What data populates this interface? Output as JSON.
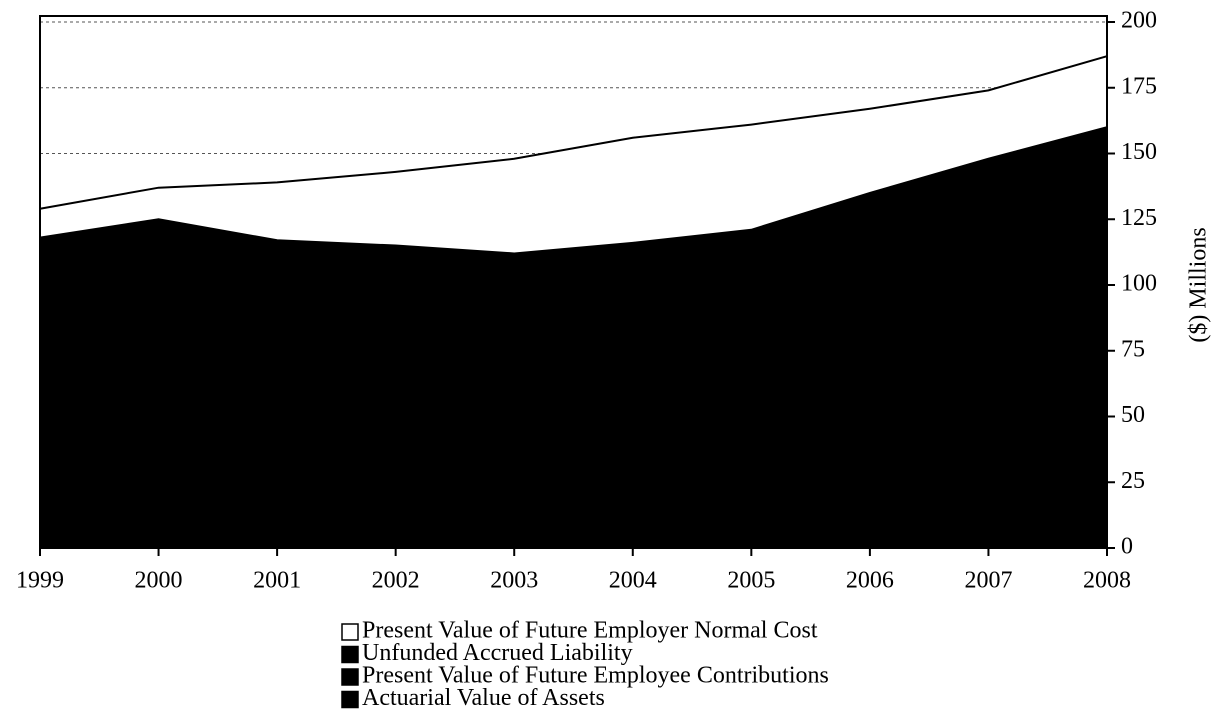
{
  "chart_data": {
    "type": "stacked_area",
    "y_axis_label": "($) Millions",
    "categories": [
      "1999",
      "2000",
      "2001",
      "2002",
      "2003",
      "2004",
      "2005",
      "2006",
      "2007",
      "2008"
    ],
    "series": [
      {
        "name": "Actuarial Value of Assets",
        "color": "#000000",
        "values": [
          100,
          105,
          95,
          90,
          85,
          85,
          88,
          98,
          108,
          118
        ]
      },
      {
        "name": "Present Value of Future Employee Contributions",
        "color": "#000000",
        "values": [
          8,
          8,
          9,
          9,
          9,
          10,
          10,
          11,
          11,
          12
        ]
      },
      {
        "name": "Unfunded Accrued Liability",
        "color": "#000000",
        "values": [
          10,
          12,
          13,
          16,
          18,
          21,
          23,
          26,
          29,
          30
        ]
      },
      {
        "name": "Present Value of Future Employer Normal Cost",
        "color": "#ffffff",
        "values": [
          11,
          12,
          22,
          28,
          36,
          40,
          40,
          32,
          26,
          27
        ]
      }
    ],
    "ylim": [
      0,
      200
    ],
    "yticks": [
      0,
      25,
      50,
      75,
      100,
      125,
      150,
      175,
      200
    ],
    "grid": true
  }
}
